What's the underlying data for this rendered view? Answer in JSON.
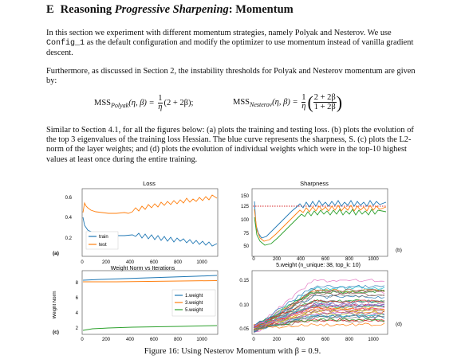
{
  "section": {
    "number": "E",
    "title_prefix": "Reasoning ",
    "title_italic": "Progressive Sharpening",
    "title_suffix": ": Momentum"
  },
  "paragraphs": {
    "p1_a": "In this section we experiment with different momentum strategies, namely Polyak and Nesterov. We use ",
    "p1_code": "Config_1",
    "p1_b": " as the default configuration and modify the optimizer to use momentum instead of vanilla gradient descent.",
    "p2": "Furthermore, as discussed in Section 2, the instability thresholds for Polyak and Nesterov momentum are given by:",
    "p3": "Similar to Section 4.1, for all the figures below: (a) plots the training and testing loss. (b) plots the evolution of the top 3 eigenvalues of the training loss Hessian. The blue curve represents the sharpness, S. (c) plots the L2-norm of the layer weights; and (d) plots the evolution of individual weights which were in the top-10 highest values at least once during the entire training."
  },
  "equations": {
    "polyak_lhs": "MSS",
    "polyak_sub": "Polyak",
    "polyak_args": "(η, β) =",
    "polyak_rhs": "(2 + 2β);",
    "nesterov_lhs": "MSS",
    "nesterov_sub": "Nesterov",
    "nesterov_args": "(η, β) =",
    "num_one": "1",
    "den_eta": "η",
    "frac_num": "2 + 2β",
    "frac_den": "1 + 2β"
  },
  "figure": {
    "panel_a": {
      "title": "Loss",
      "label": "(a)",
      "legend": [
        "train",
        "test"
      ],
      "x_ticks": [
        "0",
        "200",
        "400",
        "600",
        "800",
        "1000"
      ],
      "y_ticks": [
        "0.2",
        "0.4",
        "0.6"
      ],
      "xlabel": "Weight Norm vs Iterations"
    },
    "panel_b": {
      "title": "Sharpness",
      "label": "(b)",
      "x_ticks": [
        "0",
        "200",
        "400",
        "600",
        "800",
        "1000"
      ],
      "y_ticks": [
        "50",
        "75",
        "100",
        "125",
        "150"
      ],
      "xlabel": "5.weight (n_unique: 38, top_k: 10)"
    },
    "panel_c": {
      "label": "(c)",
      "ylabel": "Weight Norm",
      "legend": [
        "1.weight",
        "3.weight",
        "5.weight"
      ],
      "x_ticks": [
        "0",
        "200",
        "400",
        "600",
        "800",
        "1000"
      ],
      "y_ticks": [
        "2",
        "4",
        "6",
        "8"
      ]
    },
    "panel_d": {
      "label": "(d)",
      "x_ticks": [
        "0",
        "200",
        "400",
        "600",
        "800",
        "1000"
      ],
      "y_ticks": [
        "0.05",
        "0.10",
        "0.15"
      ]
    },
    "colors": {
      "blue": "#1f77b4",
      "orange": "#ff7f0e",
      "green": "#2ca02c",
      "red": "#d62728"
    }
  },
  "caption": "Figure 16: Using Nesterov Momentum with β = 0.9."
}
